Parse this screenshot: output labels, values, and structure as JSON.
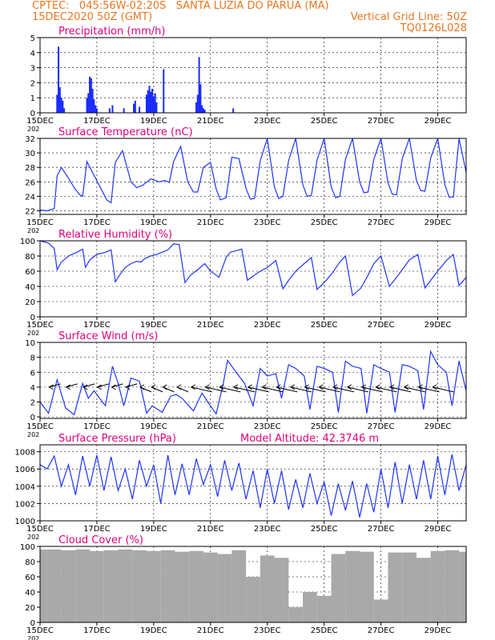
{
  "header": {
    "line1_left": "CPTEC:   045:56W-02:20S   SANTA LUZIA DO PARUA (MA)",
    "line2_left": "15DEC2020 50Z (GMT)",
    "line2_right": "Vertical Grid Line: 50Z",
    "line3_right": "TQ0126L028"
  },
  "colors": {
    "header": "#e87722",
    "title": "#e0007a",
    "line": "#1f35ff",
    "bar": "#1a2bff",
    "cloud": "#a9a9a9"
  },
  "x_tick_labels": [
    "15DEC",
    "17DEC",
    "19DEC",
    "21DEC",
    "23DEC",
    "25DEC",
    "27DEC",
    "29DEC"
  ],
  "x_tick_days": [
    0,
    2,
    4,
    6,
    8,
    10,
    12,
    14
  ],
  "year_fragment": "202",
  "chart_data": [
    {
      "type": "bar",
      "title": "Precipitation (mm/h)",
      "ylim": [
        0,
        5
      ],
      "yticks": [
        0,
        1,
        2,
        3,
        4,
        5
      ],
      "x_unit": "days since 15DEC2020 00Z",
      "x": [
        0.6,
        0.65,
        0.7,
        0.75,
        0.8,
        0.85,
        1.65,
        1.7,
        1.75,
        1.8,
        1.85,
        1.9,
        1.95,
        2.0,
        2.45,
        2.55,
        2.95,
        3.3,
        3.35,
        3.5,
        3.75,
        3.8,
        3.85,
        3.9,
        3.95,
        4.0,
        4.05,
        4.1,
        4.35,
        5.5,
        5.55,
        5.6,
        5.65,
        5.7,
        5.75,
        5.8,
        6.8
      ],
      "values": [
        1.2,
        4.4,
        1.7,
        1.0,
        0.8,
        0.3,
        1.0,
        1.3,
        2.4,
        2.3,
        1.6,
        0.9,
        0.5,
        0.3,
        0.3,
        0.5,
        0.3,
        0.6,
        0.8,
        0.4,
        1.2,
        1.5,
        1.8,
        1.4,
        1.6,
        1.1,
        1.3,
        0.7,
        2.9,
        0.7,
        1.2,
        3.7,
        1.9,
        0.5,
        0.3,
        0.2,
        0.3
      ]
    },
    {
      "type": "line",
      "title": "Surface Temperature (nC)",
      "ylim": [
        21.5,
        32
      ],
      "yticks": [
        22,
        24,
        26,
        28,
        30,
        32
      ],
      "x_unit": "days since 15DEC2020 00Z",
      "x": [
        0,
        0.25,
        0.5,
        0.6,
        0.75,
        1.0,
        1.2,
        1.4,
        1.5,
        1.65,
        1.9,
        2.15,
        2.35,
        2.5,
        2.65,
        2.9,
        3.2,
        3.4,
        3.6,
        3.9,
        4.2,
        4.4,
        4.55,
        4.7,
        4.95,
        5.2,
        5.4,
        5.55,
        5.75,
        6.0,
        6.2,
        6.35,
        6.55,
        6.75,
        7.0,
        7.25,
        7.4,
        7.55,
        7.75,
        8.0,
        8.25,
        8.4,
        8.55,
        8.75,
        9.0,
        9.25,
        9.4,
        9.55,
        9.75,
        10.0,
        10.25,
        10.4,
        10.55,
        10.75,
        11.0,
        11.25,
        11.4,
        11.55,
        11.75,
        12.0,
        12.25,
        12.4,
        12.55,
        12.75,
        13.0,
        13.25,
        13.4,
        13.55,
        13.75,
        14.0,
        14.25,
        14.4,
        14.55,
        14.75,
        15.0
      ],
      "values": [
        22.1,
        22.0,
        22.3,
        26.8,
        28.0,
        26.5,
        25.2,
        24.2,
        24.0,
        28.8,
        26.9,
        25.0,
        23.5,
        23.1,
        28.7,
        30.3,
        26.0,
        25.2,
        25.5,
        26.4,
        26.0,
        26.2,
        25.9,
        28.8,
        30.9,
        26.0,
        24.6,
        24.6,
        28.0,
        28.7,
        25.0,
        23.5,
        23.8,
        29.4,
        29.2,
        25.1,
        23.6,
        23.7,
        28.9,
        32.0,
        25.3,
        23.7,
        24.0,
        28.9,
        32.0,
        25.6,
        24.0,
        24.1,
        29.0,
        32.0,
        25.3,
        23.8,
        24.0,
        29.1,
        32.0,
        26.0,
        24.5,
        24.6,
        29.1,
        32.0,
        25.8,
        24.3,
        24.2,
        29.2,
        32.0,
        26.2,
        24.8,
        24.7,
        29.3,
        32.0,
        25.6,
        23.9,
        23.9,
        32.0,
        27.3
      ]
    },
    {
      "type": "line",
      "title": "Relative Humidity (%)",
      "ylim": [
        0,
        100
      ],
      "yticks": [
        0,
        20,
        40,
        60,
        80,
        100
      ],
      "x_unit": "days since 15DEC2020 00Z",
      "x": [
        0,
        0.3,
        0.5,
        0.6,
        0.75,
        1.0,
        1.3,
        1.5,
        1.6,
        1.75,
        2.0,
        2.3,
        2.5,
        2.65,
        2.8,
        3.0,
        3.2,
        3.4,
        3.55,
        3.7,
        3.9,
        4.1,
        4.3,
        4.5,
        4.7,
        4.9,
        5.1,
        5.3,
        5.55,
        5.8,
        6.0,
        6.3,
        6.55,
        6.7,
        6.9,
        7.1,
        7.3,
        7.55,
        7.75,
        8.0,
        8.3,
        8.55,
        8.75,
        9.0,
        9.3,
        9.55,
        9.75,
        10.0,
        10.3,
        10.55,
        10.75,
        11.0,
        11.3,
        11.55,
        11.75,
        12.0,
        12.3,
        12.55,
        12.75,
        13.0,
        13.3,
        13.55,
        13.75,
        14.0,
        14.3,
        14.55,
        14.75,
        15.0
      ],
      "values": [
        100,
        97,
        90,
        62,
        72,
        80,
        85,
        89,
        65,
        75,
        82,
        85,
        88,
        46,
        55,
        65,
        70,
        73,
        72,
        77,
        80,
        82,
        85,
        88,
        96,
        95,
        45,
        55,
        62,
        70,
        60,
        52,
        78,
        85,
        87,
        89,
        48,
        55,
        60,
        65,
        74,
        37,
        48,
        60,
        70,
        78,
        36,
        45,
        58,
        72,
        80,
        28,
        38,
        55,
        70,
        80,
        40,
        52,
        62,
        75,
        82,
        38,
        48,
        60,
        74,
        82,
        41,
        52
      ]
    },
    {
      "type": "line",
      "title": "Surface Wind (m/s)",
      "ylim": [
        -0.2,
        10
      ],
      "yticks": [
        0,
        2,
        4,
        6,
        8,
        10
      ],
      "x_unit": "days since 15DEC2020 00Z",
      "x": [
        0,
        0.3,
        0.6,
        0.9,
        1.2,
        1.5,
        1.7,
        1.9,
        2.3,
        2.55,
        2.75,
        2.95,
        3.2,
        3.5,
        3.75,
        3.95,
        4.3,
        4.6,
        4.8,
        5.0,
        5.4,
        5.7,
        5.9,
        6.2,
        6.45,
        6.6,
        6.9,
        7.2,
        7.5,
        7.75,
        8.0,
        8.3,
        8.5,
        8.75,
        9.0,
        9.3,
        9.5,
        9.75,
        10.0,
        10.3,
        10.5,
        10.75,
        11.0,
        11.3,
        11.5,
        11.75,
        12.0,
        12.3,
        12.5,
        12.75,
        13.0,
        13.3,
        13.5,
        13.75,
        14.0,
        14.3,
        14.5,
        14.75,
        15.0
      ],
      "values": [
        2.0,
        0.5,
        5.0,
        1.2,
        0.3,
        4.5,
        2.5,
        3.5,
        1.5,
        6.8,
        4.5,
        1.5,
        5.2,
        4.8,
        0.5,
        1.5,
        0.6,
        2.8,
        3.0,
        2.5,
        0.8,
        3.2,
        2.0,
        0.4,
        4.5,
        7.6,
        6.0,
        4.5,
        1.5,
        6.5,
        5.5,
        5.8,
        2.5,
        7.0,
        6.5,
        5.5,
        1.0,
        6.8,
        6.5,
        6.0,
        0.6,
        7.5,
        6.8,
        6.5,
        0.5,
        7.0,
        6.5,
        6.0,
        0.6,
        7.0,
        6.8,
        6.2,
        1.0,
        8.8,
        7.0,
        6.0,
        1.5,
        7.5,
        3.5
      ]
    },
    {
      "type": "line",
      "title": "Surface Pressure (hPa)",
      "annotation": "Model Altitude: 42.3746  m",
      "ylim": [
        1000,
        1008.8
      ],
      "yticks": [
        1000,
        1002,
        1004,
        1006,
        1008
      ],
      "x_unit": "days since 15DEC2020 00Z",
      "x": [
        0,
        0.25,
        0.5,
        0.75,
        1.0,
        1.25,
        1.5,
        1.75,
        2.0,
        2.25,
        2.5,
        2.75,
        3.0,
        3.25,
        3.5,
        3.75,
        4.0,
        4.25,
        4.5,
        4.75,
        5.0,
        5.25,
        5.5,
        5.75,
        6.0,
        6.25,
        6.5,
        6.75,
        7.0,
        7.25,
        7.5,
        7.75,
        8.0,
        8.25,
        8.5,
        8.75,
        9.0,
        9.25,
        9.5,
        9.75,
        10.0,
        10.25,
        10.5,
        10.75,
        11.0,
        11.25,
        11.5,
        11.75,
        12.0,
        12.25,
        12.5,
        12.75,
        13.0,
        13.25,
        13.5,
        13.75,
        14.0,
        14.25,
        14.5,
        14.75,
        15.0
      ],
      "values": [
        1006.5,
        1006.0,
        1007.5,
        1004.0,
        1006.5,
        1003.0,
        1007.5,
        1004.0,
        1007.6,
        1003.5,
        1007.4,
        1003.5,
        1006.0,
        1002.5,
        1007.0,
        1004.0,
        1006.5,
        1002.0,
        1007.6,
        1003.0,
        1006.6,
        1003.0,
        1007.2,
        1004.2,
        1006.5,
        1002.8,
        1007.0,
        1003.5,
        1006.7,
        1002.5,
        1005.8,
        1001.5,
        1006.0,
        1002.0,
        1005.8,
        1001.3,
        1004.8,
        1001.5,
        1005.5,
        1002.0,
        1004.5,
        1000.6,
        1004.3,
        1001.2,
        1004.6,
        1000.4,
        1004.3,
        1001.0,
        1006.0,
        1001.5,
        1006.8,
        1002.0,
        1006.5,
        1002.5,
        1007.0,
        1002.5,
        1007.5,
        1003.0,
        1007.7,
        1003.5,
        1006.5
      ]
    },
    {
      "type": "bar",
      "title": "Cloud Cover (%)",
      "ylim": [
        0,
        100
      ],
      "yticks": [
        0,
        20,
        40,
        60,
        80,
        100
      ],
      "x_unit": "days since 15DEC2020 00Z",
      "x": [
        0,
        0.5,
        1,
        1.5,
        2,
        2.5,
        3,
        3.5,
        4,
        4.5,
        5,
        5.5,
        6,
        6.5,
        7,
        7.5,
        8,
        8.5,
        9,
        9.5,
        10,
        10.5,
        11,
        11.5,
        12,
        12.5,
        13,
        13.5,
        14,
        14.5,
        15
      ],
      "values": [
        96,
        96,
        95,
        96,
        94,
        95,
        96,
        95,
        94,
        95,
        93,
        94,
        92,
        90,
        95,
        60,
        88,
        85,
        20,
        40,
        35,
        90,
        94,
        93,
        30,
        92,
        92,
        85,
        94,
        95,
        93
      ]
    }
  ]
}
